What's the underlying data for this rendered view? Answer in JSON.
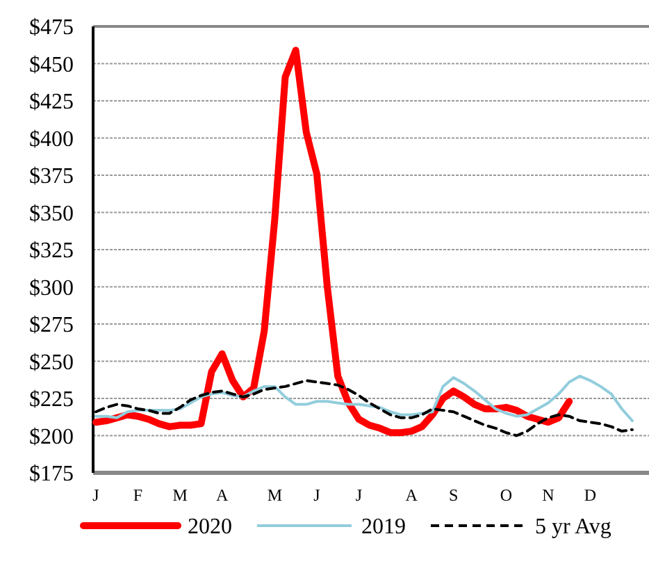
{
  "chart_data": {
    "type": "line",
    "categories": [
      "J",
      null,
      null,
      null,
      "F",
      null,
      null,
      null,
      "M",
      null,
      null,
      null,
      "A",
      null,
      null,
      null,
      null,
      "M",
      null,
      null,
      null,
      "J",
      null,
      null,
      null,
      "J",
      null,
      null,
      null,
      null,
      "A",
      null,
      null,
      null,
      "S",
      null,
      null,
      null,
      null,
      "O",
      null,
      null,
      null,
      "N",
      null,
      null,
      null,
      "D",
      null,
      null,
      null,
      null
    ],
    "series": [
      {
        "name": "2020",
        "color": "#ff0000",
        "line_style": "solid",
        "values": [
          209,
          210,
          212,
          214,
          213,
          211,
          208,
          206,
          207,
          207,
          208,
          243,
          255,
          237,
          226,
          232,
          270,
          345,
          441,
          459,
          404,
          376,
          300,
          240,
          222,
          211,
          207,
          205,
          202,
          202,
          203,
          206,
          214,
          225,
          230,
          226,
          221,
          218,
          218,
          219,
          217,
          213,
          211,
          209,
          212,
          223,
          null,
          null,
          null,
          null,
          null,
          null
        ]
      },
      {
        "name": "2019",
        "color": "#92cddc",
        "line_style": "solid",
        "values": [
          213,
          213,
          212,
          216,
          217,
          217,
          217,
          217,
          218,
          222,
          226,
          228,
          229,
          227,
          226,
          230,
          233,
          233,
          226,
          221,
          221,
          223,
          223,
          222,
          221,
          221,
          220,
          219,
          216,
          214,
          214,
          215,
          216,
          233,
          239,
          235,
          230,
          224,
          218,
          215,
          213,
          214,
          218,
          222,
          228,
          236,
          240,
          237,
          233,
          228,
          218,
          210
        ]
      },
      {
        "name": "5 yr Avg",
        "color": "#000000",
        "line_style": "dashed",
        "values": [
          216,
          219,
          221,
          220,
          218,
          217,
          215,
          215,
          219,
          224,
          227,
          229,
          230,
          228,
          226,
          228,
          231,
          232,
          233,
          235,
          237,
          236,
          235,
          234,
          231,
          227,
          222,
          218,
          214,
          212,
          212,
          214,
          218,
          217,
          216,
          213,
          210,
          207,
          205,
          202,
          200,
          203,
          208,
          212,
          214,
          213,
          210,
          209,
          208,
          206,
          203,
          204
        ]
      }
    ],
    "ylim": [
      175,
      475
    ],
    "yticks": [
      {
        "value": 175,
        "label": "$175"
      },
      {
        "value": 200,
        "label": "$200"
      },
      {
        "value": 225,
        "label": "$225"
      },
      {
        "value": 250,
        "label": "$250"
      },
      {
        "value": 275,
        "label": "$275"
      },
      {
        "value": 300,
        "label": "$300"
      },
      {
        "value": 325,
        "label": "$325"
      },
      {
        "value": 350,
        "label": "$350"
      },
      {
        "value": 375,
        "label": "$375"
      },
      {
        "value": 400,
        "label": "$400"
      },
      {
        "value": 425,
        "label": "$425"
      },
      {
        "value": 450,
        "label": "$450"
      },
      {
        "value": 475,
        "label": "$475"
      }
    ],
    "grid": "y",
    "legend": "bottom"
  }
}
